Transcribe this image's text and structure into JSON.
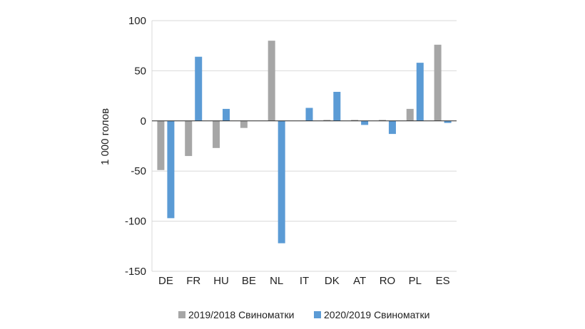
{
  "chart_data": {
    "type": "bar",
    "title": "",
    "xlabel": "",
    "ylabel": "1 000 голов",
    "ylim": [
      -150,
      100
    ],
    "yticks": [
      100,
      50,
      0,
      -50,
      -100,
      -150
    ],
    "ytick_labels": [
      "100",
      "50",
      "0",
      "-50",
      "-100",
      "-150"
    ],
    "grid": true,
    "legend_position": "bottom",
    "categories": [
      "DE",
      "FR",
      "HU",
      "BE",
      "NL",
      "IT",
      "DK",
      "AT",
      "RO",
      "PL",
      "ES"
    ],
    "series": [
      {
        "name": "2019/2018 Свиноматки",
        "color": "#a6a6a6",
        "values": [
          -49,
          -35,
          -27,
          -7,
          80,
          0,
          1,
          1,
          1,
          12,
          76
        ]
      },
      {
        "name": "2020/2019 Свиноматки",
        "color": "#5b9bd5",
        "values": [
          -97,
          64,
          12,
          0,
          -122,
          13,
          29,
          -4,
          -13,
          58,
          -2
        ]
      }
    ]
  }
}
